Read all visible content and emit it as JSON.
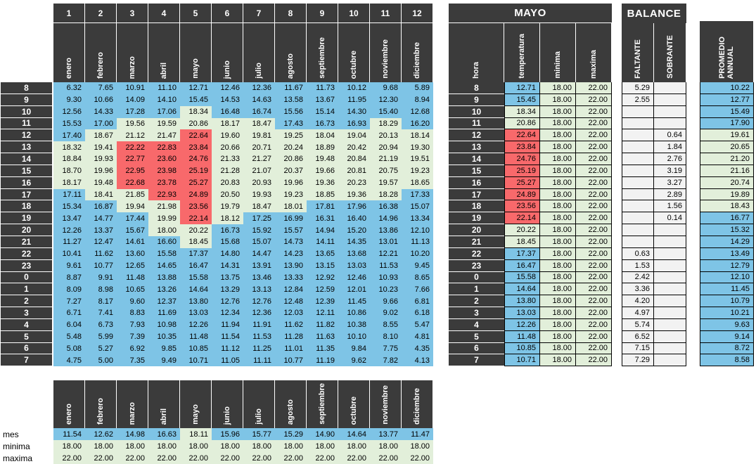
{
  "colors": {
    "header_bg": "#3B3B3B",
    "cold": "#7EC4E6",
    "comfort": "#E2EFDA",
    "hot": "#F8696B",
    "neutral": "#F2F2F2"
  },
  "thresholds": {
    "comfort_min": 18,
    "comfort_max": 22
  },
  "hours": [
    "8",
    "9",
    "10",
    "11",
    "12",
    "13",
    "14",
    "15",
    "16",
    "17",
    "18",
    "19",
    "20",
    "21",
    "22",
    "23",
    "0",
    "1",
    "2",
    "3",
    "4",
    "5",
    "6",
    "7"
  ],
  "main_table": {
    "col_numbers": [
      "1",
      "2",
      "3",
      "4",
      "5",
      "6",
      "7",
      "8",
      "9",
      "10",
      "11",
      "12"
    ],
    "months": [
      "enero",
      "febrero",
      "marzo",
      "abril",
      "mayo",
      "junio",
      "julio",
      "agosto",
      "septiembre",
      "octubre",
      "noviembre",
      "diciembre"
    ],
    "values": [
      [
        6.32,
        7.65,
        10.91,
        11.1,
        12.71,
        12.46,
        12.36,
        11.67,
        11.73,
        10.12,
        9.68,
        5.89
      ],
      [
        9.3,
        10.66,
        14.09,
        14.1,
        15.45,
        14.53,
        14.63,
        13.58,
        13.67,
        11.95,
        12.3,
        8.94
      ],
      [
        12.56,
        14.33,
        17.28,
        17.06,
        18.34,
        16.48,
        16.74,
        15.56,
        15.14,
        14.3,
        15.4,
        12.68
      ],
      [
        15.53,
        17.0,
        19.56,
        19.59,
        20.86,
        18.17,
        18.47,
        17.43,
        16.73,
        16.93,
        18.29,
        16.2
      ],
      [
        17.4,
        18.67,
        21.12,
        21.47,
        22.64,
        19.6,
        19.81,
        19.25,
        18.04,
        19.04,
        20.13,
        18.14
      ],
      [
        18.32,
        19.41,
        22.22,
        22.83,
        23.84,
        20.66,
        20.71,
        20.24,
        18.89,
        20.42,
        20.94,
        19.3
      ],
      [
        18.84,
        19.93,
        22.77,
        23.6,
        24.76,
        21.33,
        21.27,
        20.86,
        19.48,
        20.84,
        21.19,
        19.51
      ],
      [
        18.7,
        19.96,
        22.95,
        23.98,
        25.19,
        21.28,
        21.07,
        20.37,
        19.66,
        20.81,
        20.75,
        19.23
      ],
      [
        18.17,
        19.48,
        22.68,
        23.78,
        25.27,
        20.83,
        20.93,
        19.96,
        19.36,
        20.23,
        19.57,
        18.65
      ],
      [
        17.11,
        18.41,
        21.85,
        22.93,
        24.89,
        20.5,
        19.93,
        19.23,
        18.85,
        19.36,
        18.28,
        17.33
      ],
      [
        15.34,
        16.87,
        19.94,
        21.98,
        23.56,
        19.79,
        18.47,
        18.01,
        17.81,
        17.96,
        16.38,
        15.07
      ],
      [
        13.47,
        14.77,
        17.44,
        19.99,
        22.14,
        18.12,
        17.25,
        16.99,
        16.31,
        16.4,
        14.96,
        13.34
      ],
      [
        12.26,
        13.37,
        15.67,
        18.0,
        20.22,
        16.73,
        15.92,
        15.57,
        14.94,
        15.2,
        13.86,
        12.1
      ],
      [
        11.27,
        12.47,
        14.61,
        16.6,
        18.45,
        15.68,
        15.07,
        14.73,
        14.11,
        14.35,
        13.01,
        11.13
      ],
      [
        10.41,
        11.62,
        13.6,
        15.58,
        17.37,
        14.8,
        14.47,
        14.23,
        13.65,
        13.68,
        12.21,
        10.2
      ],
      [
        9.61,
        10.77,
        12.65,
        14.65,
        16.47,
        14.31,
        13.91,
        13.9,
        13.15,
        13.03,
        11.53,
        9.45
      ],
      [
        8.87,
        9.91,
        11.48,
        13.88,
        15.58,
        13.75,
        13.46,
        13.33,
        12.92,
        12.46,
        10.93,
        8.65
      ],
      [
        8.09,
        8.98,
        10.65,
        13.26,
        14.64,
        13.29,
        13.13,
        12.84,
        12.59,
        12.01,
        10.23,
        7.66
      ],
      [
        7.27,
        8.17,
        9.6,
        12.37,
        13.8,
        12.76,
        12.76,
        12.48,
        12.39,
        11.45,
        9.66,
        6.81
      ],
      [
        6.71,
        7.41,
        8.83,
        11.69,
        13.03,
        12.34,
        12.36,
        12.03,
        12.11,
        10.86,
        9.02,
        6.18
      ],
      [
        6.04,
        6.73,
        7.93,
        10.98,
        12.26,
        11.94,
        11.91,
        11.62,
        11.82,
        10.38,
        8.55,
        5.47
      ],
      [
        5.48,
        5.99,
        7.39,
        10.35,
        11.48,
        11.54,
        11.53,
        11.28,
        11.63,
        10.1,
        8.1,
        4.81
      ],
      [
        5.08,
        5.27,
        6.92,
        9.85,
        10.85,
        11.12,
        11.25,
        11.01,
        11.35,
        9.84,
        7.75,
        4.35
      ],
      [
        4.75,
        5.0,
        7.35,
        9.49,
        10.71,
        11.05,
        11.11,
        10.77,
        11.19,
        9.62,
        7.82,
        4.13
      ]
    ]
  },
  "mayo_table": {
    "title": "MAYO",
    "headers": [
      "hora",
      "temperatura",
      "minima",
      "maxima"
    ],
    "temperatura": [
      12.71,
      15.45,
      18.34,
      20.86,
      22.64,
      23.84,
      24.76,
      25.19,
      25.27,
      24.89,
      23.56,
      22.14,
      20.22,
      18.45,
      17.37,
      16.47,
      15.58,
      14.64,
      13.8,
      13.03,
      12.26,
      11.48,
      10.85,
      10.71
    ],
    "minima": 18.0,
    "maxima": 22.0
  },
  "balance_table": {
    "title": "BALANCE",
    "headers": [
      "FALTANTE",
      "SOBRANTE"
    ],
    "faltante": [
      5.29,
      2.55,
      null,
      null,
      null,
      null,
      null,
      null,
      null,
      null,
      null,
      null,
      null,
      null,
      0.63,
      1.53,
      2.42,
      3.36,
      4.2,
      4.97,
      5.74,
      6.52,
      7.15,
      7.29
    ],
    "sobrante": [
      null,
      null,
      null,
      null,
      0.64,
      1.84,
      2.76,
      3.19,
      3.27,
      2.89,
      1.56,
      0.14,
      null,
      null,
      null,
      null,
      null,
      null,
      null,
      null,
      null,
      null,
      null,
      null
    ]
  },
  "promedio_table": {
    "header": "PROMEDIO ANNUAL",
    "values": [
      10.22,
      12.77,
      15.49,
      17.9,
      19.61,
      20.65,
      21.2,
      21.16,
      20.74,
      19.89,
      18.43,
      16.77,
      15.32,
      14.29,
      13.49,
      12.79,
      12.1,
      11.45,
      10.79,
      10.21,
      9.63,
      9.14,
      8.72,
      8.58
    ]
  },
  "bottom_table": {
    "months": [
      "enero",
      "febrero",
      "marzo",
      "abril",
      "mayo",
      "junio",
      "julio",
      "agosto",
      "septiembre",
      "octubre",
      "noviembre",
      "diciembre"
    ],
    "row_labels": [
      "mes",
      "minima",
      "maxima"
    ],
    "mes": [
      11.54,
      12.62,
      14.98,
      16.63,
      18.11,
      15.96,
      15.77,
      15.29,
      14.9,
      14.64,
      13.77,
      11.47
    ],
    "minima": [
      18.0,
      18.0,
      18.0,
      18.0,
      18.0,
      18.0,
      18.0,
      18.0,
      18.0,
      18.0,
      18.0,
      18.0
    ],
    "maxima": [
      22.0,
      22.0,
      22.0,
      22.0,
      22.0,
      22.0,
      22.0,
      22.0,
      22.0,
      22.0,
      22.0,
      22.0
    ]
  }
}
